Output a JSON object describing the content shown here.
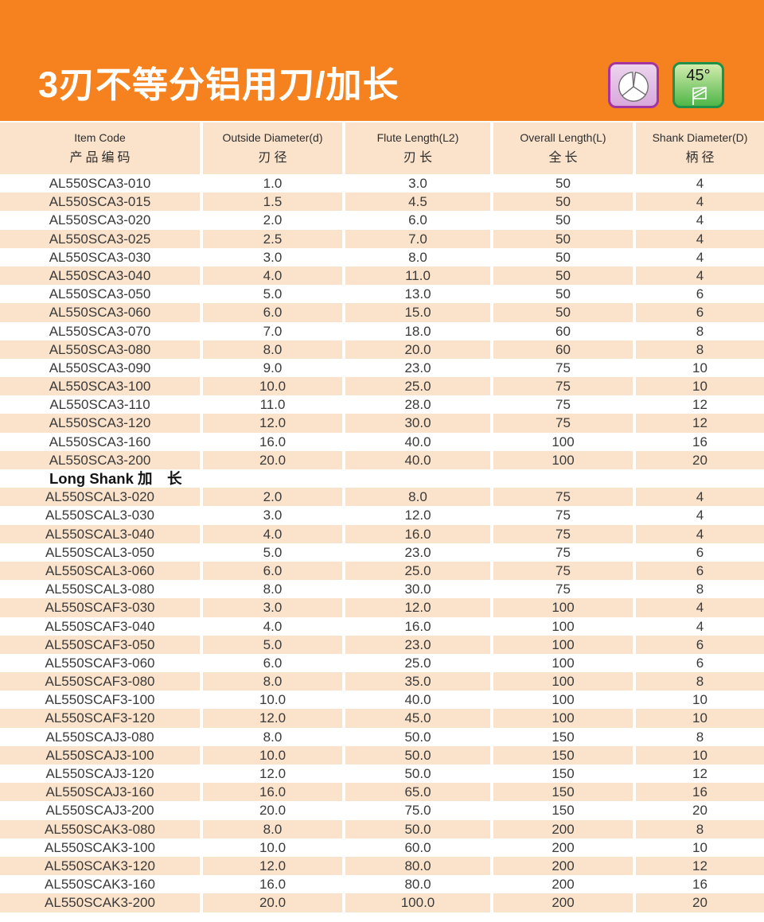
{
  "title": "3刃不等分铝用刀/加长",
  "badges": {
    "flutes_icon": "three-flute-cross-section",
    "angle_label": "45°",
    "angle_icon": "helix-angle"
  },
  "colors": {
    "banner_orange": "#F5821E",
    "row_peach": "#FBE3CB",
    "text_dark": "#3A3A3A",
    "badge_purple_border": "#A435A0",
    "badge_purple_fill": "#D8A9DC",
    "badge_green_border": "#1F9148",
    "badge_green_fill": "#4FB648"
  },
  "table": {
    "columns": [
      {
        "en": "Item Code",
        "cn": "产品编码"
      },
      {
        "en": "Outside Diameter(d)",
        "cn": "刃径"
      },
      {
        "en": "Flute Length(L2)",
        "cn": "刃长"
      },
      {
        "en": "Overall Length(L)",
        "cn": "全长"
      },
      {
        "en": "Shank Diameter(D)",
        "cn": "柄径"
      }
    ],
    "rows": [
      {
        "cells": [
          "AL550SCA3-010",
          "1.0",
          "3.0",
          "50",
          "4"
        ]
      },
      {
        "cells": [
          "AL550SCA3-015",
          "1.5",
          "4.5",
          "50",
          "4"
        ]
      },
      {
        "cells": [
          "AL550SCA3-020",
          "2.0",
          "6.0",
          "50",
          "4"
        ]
      },
      {
        "cells": [
          "AL550SCA3-025",
          "2.5",
          "7.0",
          "50",
          "4"
        ]
      },
      {
        "cells": [
          "AL550SCA3-030",
          "3.0",
          "8.0",
          "50",
          "4"
        ]
      },
      {
        "cells": [
          "AL550SCA3-040",
          "4.0",
          "11.0",
          "50",
          "4"
        ]
      },
      {
        "cells": [
          "AL550SCA3-050",
          "5.0",
          "13.0",
          "50",
          "6"
        ]
      },
      {
        "cells": [
          "AL550SCA3-060",
          "6.0",
          "15.0",
          "50",
          "6"
        ]
      },
      {
        "cells": [
          "AL550SCA3-070",
          "7.0",
          "18.0",
          "60",
          "8"
        ]
      },
      {
        "cells": [
          "AL550SCA3-080",
          "8.0",
          "20.0",
          "60",
          "8"
        ]
      },
      {
        "cells": [
          "AL550SCA3-090",
          "9.0",
          "23.0",
          "75",
          "10"
        ]
      },
      {
        "cells": [
          "AL550SCA3-100",
          "10.0",
          "25.0",
          "75",
          "10"
        ]
      },
      {
        "cells": [
          "AL550SCA3-110",
          "11.0",
          "28.0",
          "75",
          "12"
        ]
      },
      {
        "cells": [
          "AL550SCA3-120",
          "12.0",
          "30.0",
          "75",
          "12"
        ]
      },
      {
        "cells": [
          "AL550SCA3-160",
          "16.0",
          "40.0",
          "100",
          "16"
        ]
      },
      {
        "cells": [
          "AL550SCA3-200",
          "20.0",
          "40.0",
          "100",
          "20"
        ]
      },
      {
        "section": "Long Shank 加　长"
      },
      {
        "cells": [
          "AL550SCAL3-020",
          "2.0",
          "8.0",
          "75",
          "4"
        ]
      },
      {
        "cells": [
          "AL550SCAL3-030",
          "3.0",
          "12.0",
          "75",
          "4"
        ]
      },
      {
        "cells": [
          "AL550SCAL3-040",
          "4.0",
          "16.0",
          "75",
          "4"
        ]
      },
      {
        "cells": [
          "AL550SCAL3-050",
          "5.0",
          "23.0",
          "75",
          "6"
        ]
      },
      {
        "cells": [
          "AL550SCAL3-060",
          "6.0",
          "25.0",
          "75",
          "6"
        ]
      },
      {
        "cells": [
          "AL550SCAL3-080",
          "8.0",
          "30.0",
          "75",
          "8"
        ]
      },
      {
        "cells": [
          "AL550SCAF3-030",
          "3.0",
          "12.0",
          "100",
          "4"
        ]
      },
      {
        "cells": [
          "AL550SCAF3-040",
          "4.0",
          "16.0",
          "100",
          "4"
        ]
      },
      {
        "cells": [
          "AL550SCAF3-050",
          "5.0",
          "23.0",
          "100",
          "6"
        ]
      },
      {
        "cells": [
          "AL550SCAF3-060",
          "6.0",
          "25.0",
          "100",
          "6"
        ]
      },
      {
        "cells": [
          "AL550SCAF3-080",
          "8.0",
          "35.0",
          "100",
          "8"
        ]
      },
      {
        "cells": [
          "AL550SCAF3-100",
          "10.0",
          "40.0",
          "100",
          "10"
        ]
      },
      {
        "cells": [
          "AL550SCAF3-120",
          "12.0",
          "45.0",
          "100",
          "10"
        ]
      },
      {
        "cells": [
          "AL550SCAJ3-080",
          "8.0",
          "50.0",
          "150",
          "8"
        ]
      },
      {
        "cells": [
          "AL550SCAJ3-100",
          "10.0",
          "50.0",
          "150",
          "10"
        ]
      },
      {
        "cells": [
          "AL550SCAJ3-120",
          "12.0",
          "50.0",
          "150",
          "12"
        ]
      },
      {
        "cells": [
          "AL550SCAJ3-160",
          "16.0",
          "65.0",
          "150",
          "16"
        ]
      },
      {
        "cells": [
          "AL550SCAJ3-200",
          "20.0",
          "75.0",
          "150",
          "20"
        ]
      },
      {
        "cells": [
          "AL550SCAK3-080",
          "8.0",
          "50.0",
          "200",
          "8"
        ]
      },
      {
        "cells": [
          "AL550SCAK3-100",
          "10.0",
          "60.0",
          "200",
          "10"
        ]
      },
      {
        "cells": [
          "AL550SCAK3-120",
          "12.0",
          "80.0",
          "200",
          "12"
        ]
      },
      {
        "cells": [
          "AL550SCAK3-160",
          "16.0",
          "80.0",
          "200",
          "16"
        ]
      },
      {
        "cells": [
          "AL550SCAK3-200",
          "20.0",
          "100.0",
          "200",
          "20"
        ]
      }
    ]
  }
}
